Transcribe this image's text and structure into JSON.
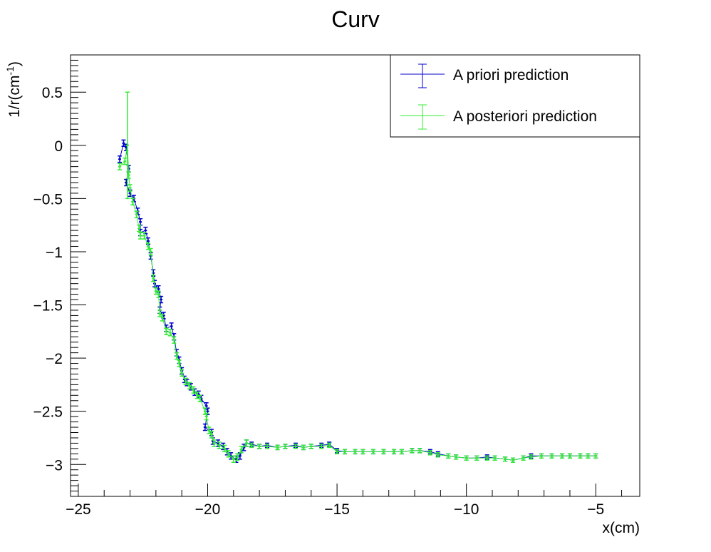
{
  "chart_data": {
    "type": "line",
    "title": "Curv",
    "xlabel": "x(cm)",
    "ylabel_base": "1/r(cm",
    "ylabel_sup": "-1",
    "ylabel_close": ")",
    "xlim": [
      -25.3,
      -3.3
    ],
    "ylim": [
      -3.3,
      0.85
    ],
    "x_ticks": [
      {
        "v": -25,
        "label": "−25"
      },
      {
        "v": -20,
        "label": "−20"
      },
      {
        "v": -15,
        "label": "−15"
      },
      {
        "v": -10,
        "label": "−10"
      },
      {
        "v": -5,
        "label": "−5"
      }
    ],
    "y_ticks": [
      {
        "v": 0.5,
        "label": "0.5"
      },
      {
        "v": 0,
        "label": "0"
      },
      {
        "v": -0.5,
        "label": "−0.5"
      },
      {
        "v": -1,
        "label": "−1"
      },
      {
        "v": -1.5,
        "label": "−1.5"
      },
      {
        "v": -2,
        "label": "−2"
      },
      {
        "v": -2.5,
        "label": "−2.5"
      },
      {
        "v": -3,
        "label": "−3"
      }
    ],
    "grid": false,
    "legend_position": "top-right",
    "series": [
      {
        "name": "A priori prediction",
        "color": "#0000cc",
        "points": [
          [
            -23.4,
            -0.13,
            0.03
          ],
          [
            -23.25,
            0.02,
            0.03
          ],
          [
            -23.15,
            -0.02,
            0.03
          ],
          [
            -23.05,
            -0.22,
            0.03
          ],
          [
            -23.15,
            -0.35,
            0.03
          ],
          [
            -23.0,
            -0.45,
            0.03
          ],
          [
            -22.85,
            -0.5,
            0.03
          ],
          [
            -22.7,
            -0.62,
            0.03
          ],
          [
            -22.6,
            -0.72,
            0.03
          ],
          [
            -22.6,
            -0.82,
            0.03
          ],
          [
            -22.4,
            -0.8,
            0.03
          ],
          [
            -22.3,
            -0.9,
            0.03
          ],
          [
            -22.2,
            -1.04,
            0.03
          ],
          [
            -22.1,
            -1.2,
            0.03
          ],
          [
            -22.05,
            -1.3,
            0.03
          ],
          [
            -21.9,
            -1.35,
            0.03
          ],
          [
            -21.8,
            -1.45,
            0.03
          ],
          [
            -21.85,
            -1.55,
            0.03
          ],
          [
            -21.7,
            -1.6,
            0.03
          ],
          [
            -21.6,
            -1.72,
            0.03
          ],
          [
            -21.4,
            -1.7,
            0.03
          ],
          [
            -21.3,
            -1.8,
            0.03
          ],
          [
            -21.2,
            -1.95,
            0.03
          ],
          [
            -21.1,
            -2.02,
            0.03
          ],
          [
            -21.0,
            -2.12,
            0.03
          ],
          [
            -20.9,
            -2.2,
            0.03
          ],
          [
            -20.8,
            -2.23,
            0.03
          ],
          [
            -20.65,
            -2.27,
            0.03
          ],
          [
            -20.5,
            -2.32,
            0.03
          ],
          [
            -20.35,
            -2.34,
            0.03
          ],
          [
            -20.25,
            -2.38,
            0.03
          ],
          [
            -20.05,
            -2.45,
            0.03
          ],
          [
            -20.0,
            -2.5,
            0.03
          ],
          [
            -20.1,
            -2.65,
            0.03
          ],
          [
            -19.85,
            -2.7,
            0.03
          ],
          [
            -19.8,
            -2.78,
            0.03
          ],
          [
            -19.6,
            -2.8,
            0.03
          ],
          [
            -19.4,
            -2.83,
            0.03
          ],
          [
            -19.25,
            -2.88,
            0.03
          ],
          [
            -19.1,
            -2.92,
            0.03
          ],
          [
            -18.9,
            -2.95,
            0.03
          ],
          [
            -18.75,
            -2.92,
            0.03
          ],
          [
            -18.6,
            -2.84,
            0.03
          ],
          [
            -18.5,
            -2.8,
            0.03
          ],
          [
            -18.3,
            -2.81,
            0.02
          ],
          [
            -18.0,
            -2.83,
            0.02
          ],
          [
            -17.7,
            -2.82,
            0.02
          ],
          [
            -17.3,
            -2.84,
            0.02
          ],
          [
            -17.0,
            -2.83,
            0.02
          ],
          [
            -16.6,
            -2.82,
            0.02
          ],
          [
            -16.3,
            -2.84,
            0.02
          ],
          [
            -16.0,
            -2.83,
            0.02
          ],
          [
            -15.6,
            -2.82,
            0.02
          ],
          [
            -15.3,
            -2.81,
            0.02
          ],
          [
            -15.0,
            -2.87,
            0.02
          ],
          [
            -14.7,
            -2.88,
            0.02
          ],
          [
            -14.3,
            -2.88,
            0.02
          ],
          [
            -14.0,
            -2.88,
            0.02
          ],
          [
            -13.6,
            -2.88,
            0.02
          ],
          [
            -13.2,
            -2.88,
            0.02
          ],
          [
            -12.8,
            -2.88,
            0.02
          ],
          [
            -12.5,
            -2.88,
            0.02
          ],
          [
            -12.1,
            -2.87,
            0.02
          ],
          [
            -11.8,
            -2.87,
            0.02
          ],
          [
            -11.4,
            -2.88,
            0.02
          ],
          [
            -11.1,
            -2.9,
            0.02
          ],
          [
            -10.7,
            -2.92,
            0.02
          ],
          [
            -10.4,
            -2.93,
            0.02
          ],
          [
            -10.0,
            -2.94,
            0.02
          ],
          [
            -9.6,
            -2.94,
            0.02
          ],
          [
            -9.2,
            -2.93,
            0.02
          ],
          [
            -8.9,
            -2.94,
            0.02
          ],
          [
            -8.5,
            -2.95,
            0.02
          ],
          [
            -8.2,
            -2.96,
            0.02
          ],
          [
            -7.8,
            -2.94,
            0.02
          ],
          [
            -7.5,
            -2.92,
            0.02
          ],
          [
            -7.1,
            -2.92,
            0.02
          ],
          [
            -6.7,
            -2.92,
            0.02
          ],
          [
            -6.3,
            -2.92,
            0.02
          ],
          [
            -6.0,
            -2.92,
            0.02
          ],
          [
            -5.6,
            -2.92,
            0.02
          ],
          [
            -5.3,
            -2.92,
            0.02
          ],
          [
            -5.0,
            -2.92,
            0.02
          ]
        ]
      },
      {
        "name": "A posteriori prediction",
        "color": "#33ee33",
        "points": [
          [
            -23.4,
            -0.2,
            0.03
          ],
          [
            -23.2,
            -0.15,
            0.03
          ],
          [
            -23.1,
            0.0,
            0.5
          ],
          [
            -23.05,
            -0.28,
            0.03
          ],
          [
            -23.0,
            -0.4,
            0.03
          ],
          [
            -22.9,
            -0.53,
            0.03
          ],
          [
            -22.75,
            -0.65,
            0.03
          ],
          [
            -22.65,
            -0.78,
            0.03
          ],
          [
            -22.6,
            -0.85,
            0.03
          ],
          [
            -22.45,
            -0.85,
            0.03
          ],
          [
            -22.3,
            -0.95,
            0.03
          ],
          [
            -22.2,
            -1.0,
            0.03
          ],
          [
            -22.1,
            -1.25,
            0.03
          ],
          [
            -22.0,
            -1.37,
            0.03
          ],
          [
            -21.9,
            -1.4,
            0.03
          ],
          [
            -21.85,
            -1.58,
            0.03
          ],
          [
            -21.75,
            -1.62,
            0.03
          ],
          [
            -21.6,
            -1.75,
            0.03
          ],
          [
            -21.45,
            -1.76,
            0.03
          ],
          [
            -21.3,
            -1.83,
            0.03
          ],
          [
            -21.2,
            -1.98,
            0.03
          ],
          [
            -21.1,
            -2.05,
            0.03
          ],
          [
            -21.0,
            -2.14,
            0.03
          ],
          [
            -20.85,
            -2.22,
            0.03
          ],
          [
            -20.7,
            -2.26,
            0.03
          ],
          [
            -20.55,
            -2.3,
            0.03
          ],
          [
            -20.4,
            -2.35,
            0.03
          ],
          [
            -20.3,
            -2.38,
            0.03
          ],
          [
            -20.1,
            -2.5,
            0.03
          ],
          [
            -20.05,
            -2.55,
            0.03
          ],
          [
            -19.95,
            -2.68,
            0.03
          ],
          [
            -19.85,
            -2.72,
            0.03
          ],
          [
            -19.75,
            -2.8,
            0.03
          ],
          [
            -19.55,
            -2.82,
            0.03
          ],
          [
            -19.35,
            -2.85,
            0.03
          ],
          [
            -19.2,
            -2.9,
            0.03
          ],
          [
            -19.0,
            -2.95,
            0.03
          ],
          [
            -18.85,
            -2.93,
            0.03
          ],
          [
            -18.7,
            -2.86,
            0.03
          ],
          [
            -18.5,
            -2.8,
            0.03
          ],
          [
            -18.3,
            -2.82,
            0.02
          ],
          [
            -18.0,
            -2.83,
            0.02
          ],
          [
            -17.7,
            -2.83,
            0.02
          ],
          [
            -17.3,
            -2.84,
            0.02
          ],
          [
            -17.0,
            -2.83,
            0.02
          ],
          [
            -16.6,
            -2.83,
            0.02
          ],
          [
            -16.3,
            -2.84,
            0.02
          ],
          [
            -16.0,
            -2.83,
            0.02
          ],
          [
            -15.6,
            -2.83,
            0.02
          ],
          [
            -15.3,
            -2.82,
            0.02
          ],
          [
            -15.0,
            -2.88,
            0.02
          ],
          [
            -14.7,
            -2.88,
            0.02
          ],
          [
            -14.3,
            -2.88,
            0.02
          ],
          [
            -14.0,
            -2.88,
            0.02
          ],
          [
            -13.6,
            -2.88,
            0.02
          ],
          [
            -13.2,
            -2.88,
            0.02
          ],
          [
            -12.8,
            -2.88,
            0.02
          ],
          [
            -12.5,
            -2.88,
            0.02
          ],
          [
            -12.1,
            -2.87,
            0.02
          ],
          [
            -11.8,
            -2.87,
            0.02
          ],
          [
            -11.4,
            -2.89,
            0.02
          ],
          [
            -11.1,
            -2.91,
            0.02
          ],
          [
            -10.7,
            -2.92,
            0.02
          ],
          [
            -10.4,
            -2.93,
            0.02
          ],
          [
            -10.0,
            -2.94,
            0.02
          ],
          [
            -9.6,
            -2.94,
            0.02
          ],
          [
            -9.2,
            -2.94,
            0.02
          ],
          [
            -8.9,
            -2.94,
            0.02
          ],
          [
            -8.5,
            -2.95,
            0.02
          ],
          [
            -8.2,
            -2.96,
            0.02
          ],
          [
            -7.8,
            -2.94,
            0.02
          ],
          [
            -7.5,
            -2.93,
            0.02
          ],
          [
            -7.1,
            -2.92,
            0.02
          ],
          [
            -6.7,
            -2.92,
            0.02
          ],
          [
            -6.3,
            -2.92,
            0.02
          ],
          [
            -6.0,
            -2.92,
            0.02
          ],
          [
            -5.6,
            -2.92,
            0.02
          ],
          [
            -5.3,
            -2.92,
            0.02
          ],
          [
            -5.0,
            -2.92,
            0.02
          ]
        ]
      }
    ]
  }
}
